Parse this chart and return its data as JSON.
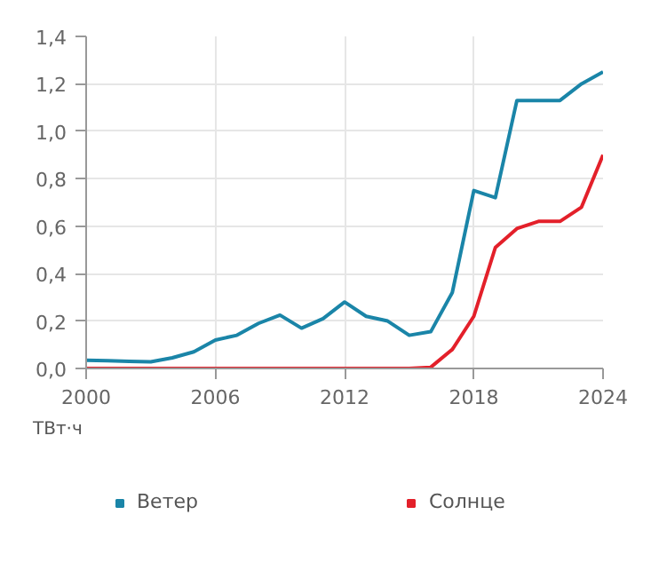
{
  "chart_data": {
    "type": "line",
    "annotations": [
      "ТВт·ч"
    ],
    "x": [
      2000,
      2001,
      2002,
      2003,
      2004,
      2005,
      2006,
      2007,
      2008,
      2009,
      2010,
      2011,
      2012,
      2013,
      2014,
      2015,
      2016,
      2017,
      2018,
      2019,
      2020,
      2021,
      2022,
      2023,
      2024
    ],
    "series": [
      {
        "name": "Ветер",
        "color": "#1a85a8",
        "values": [
          0.035,
          0.033,
          0.03,
          0.028,
          0.045,
          0.07,
          0.12,
          0.14,
          0.19,
          0.225,
          0.17,
          0.21,
          0.28,
          0.22,
          0.2,
          0.14,
          0.155,
          0.32,
          0.75,
          0.72,
          1.13,
          1.13,
          1.13,
          1.2,
          1.25
        ]
      },
      {
        "name": "Солнце",
        "color": "#e3202a",
        "values": [
          0,
          0,
          0,
          0,
          0,
          0,
          0,
          0,
          0,
          0,
          0,
          0,
          0,
          0,
          0,
          0,
          0.005,
          0.08,
          0.22,
          0.51,
          0.59,
          0.62,
          0.62,
          0.68,
          0.9
        ]
      }
    ],
    "xlim": [
      2000,
      2024
    ],
    "xticks": [
      2000,
      2006,
      2012,
      2018,
      2024
    ],
    "ylim": [
      0,
      1.4
    ],
    "yticks": [
      {
        "value": 0,
        "label": "0,0"
      },
      {
        "value": 0.2,
        "label": "0,2"
      },
      {
        "value": 0.4,
        "label": "0,4"
      },
      {
        "value": 0.6,
        "label": "0,6"
      },
      {
        "value": 0.8,
        "label": "0,8"
      },
      {
        "value": 1.0,
        "label": "1,0"
      },
      {
        "value": 1.2,
        "label": "1,2"
      },
      {
        "value": 1.4,
        "label": "1,4"
      }
    ],
    "grid": true,
    "legend": "bottom"
  }
}
